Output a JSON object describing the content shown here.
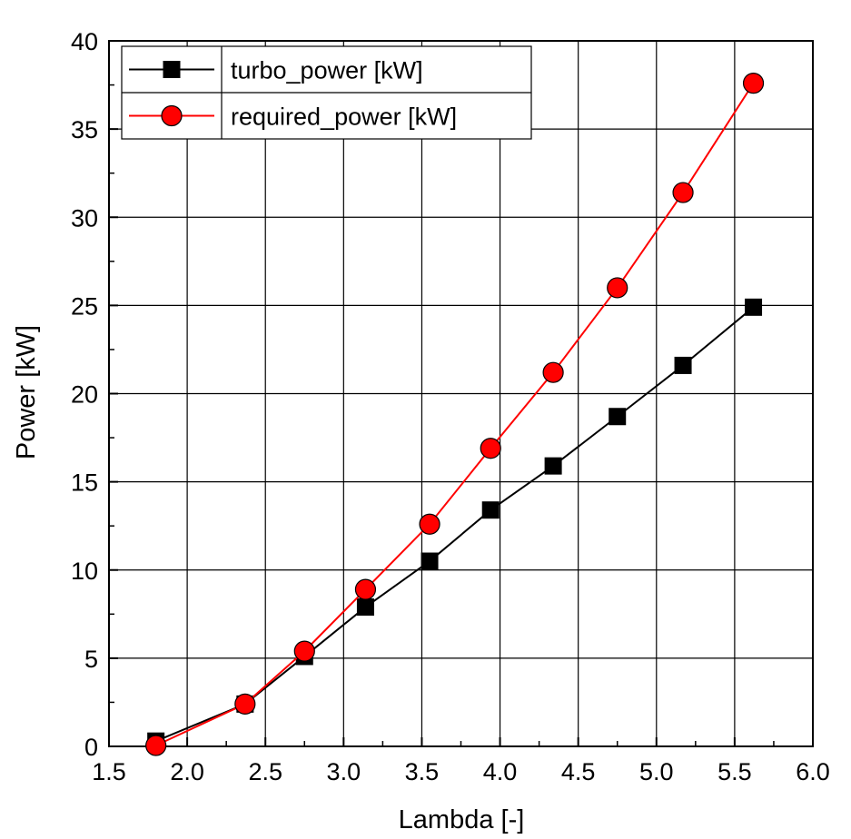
{
  "chart_data": {
    "type": "line",
    "title": "",
    "xlabel": "Lambda [-]",
    "ylabel": "Power [kW]",
    "xlim": [
      1.5,
      6.0
    ],
    "ylim": [
      0,
      40
    ],
    "xticks": [
      1.5,
      2.0,
      2.5,
      3.0,
      3.5,
      4.0,
      4.5,
      5.0,
      5.5,
      6.0
    ],
    "xtick_labels": [
      "1.5",
      "2.0",
      "2.5",
      "3.0",
      "3.5",
      "4.0",
      "4.5",
      "5.0",
      "5.5",
      "6.0"
    ],
    "yticks": [
      0,
      5,
      10,
      15,
      20,
      25,
      30,
      35,
      40
    ],
    "ytick_labels": [
      "0",
      "5",
      "10",
      "15",
      "20",
      "25",
      "30",
      "35",
      "40"
    ],
    "grid": true,
    "legend_position": "top-left",
    "series": [
      {
        "name": "turbo_power [kW]",
        "color": "#000000",
        "marker": "square",
        "x": [
          1.8,
          2.37,
          2.75,
          3.14,
          3.55,
          3.94,
          4.34,
          4.75,
          5.17,
          5.62
        ],
        "y": [
          0.3,
          2.4,
          5.1,
          7.9,
          10.5,
          13.4,
          15.9,
          18.7,
          21.6,
          24.9
        ]
      },
      {
        "name": "required_power [kW]",
        "color": "#ff0000",
        "marker": "circle",
        "x": [
          1.8,
          2.37,
          2.75,
          3.14,
          3.55,
          3.94,
          4.34,
          4.75,
          5.17,
          5.62
        ],
        "y": [
          0.05,
          2.4,
          5.4,
          8.9,
          12.6,
          16.9,
          21.2,
          26.0,
          31.4,
          37.6
        ]
      }
    ]
  }
}
